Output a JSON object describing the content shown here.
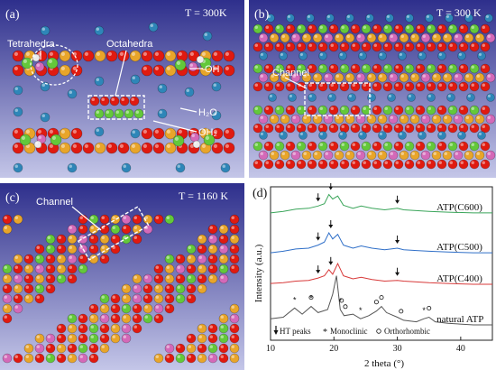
{
  "panels": {
    "a": {
      "letter": "(a)",
      "temp": "T = 300K",
      "tetrahedra": "Tetrahedra",
      "octahedra": "Octahedra",
      "oh": "OH",
      "h2o": "H₂O",
      "oh2": "OH₂"
    },
    "b": {
      "letter": "(b)",
      "temp": "T = 300 K",
      "channel": "Channel"
    },
    "c": {
      "letter": "(c)",
      "temp": "T = 1160 K",
      "channel": "Channel"
    },
    "d": {
      "letter": "(d)"
    }
  },
  "colors": {
    "bg_top": "#2e2f8c",
    "bg_bottom": "#c4c6e8",
    "oxygen": "#e01a10",
    "silicon": "#e8a52a",
    "magnesium": "#63c83a",
    "aluminium": "#d469b8",
    "hydrogen": "#ececec",
    "water": "#2e86b8",
    "annotation": "#ffffff"
  },
  "chart_data": {
    "type": "line",
    "xlabel": "2 theta (°)",
    "ylabel": "Intensity (a.u.)",
    "xlim": [
      10,
      45
    ],
    "xticks": [
      10,
      20,
      30,
      40
    ],
    "grid": false,
    "series": [
      {
        "name": "ATP(C600)",
        "color": "#3aa55a",
        "label": "ATP(C600)",
        "x": [
          10,
          12,
          14,
          16,
          17.5,
          18.5,
          19.2,
          19.8,
          20.6,
          21.5,
          23,
          24.3,
          26,
          28,
          30,
          31,
          33,
          35,
          38,
          42,
          45
        ],
        "y": [
          0.83,
          0.84,
          0.855,
          0.86,
          0.875,
          0.89,
          0.95,
          0.92,
          0.94,
          0.88,
          0.86,
          0.875,
          0.86,
          0.85,
          0.86,
          0.85,
          0.845,
          0.84,
          0.835,
          0.83,
          0.83
        ]
      },
      {
        "name": "ATP(C500)",
        "color": "#2f6fc8",
        "label": "ATP(C500)",
        "x": [
          10,
          12,
          14,
          16,
          17.5,
          18.5,
          19.2,
          19.8,
          20.6,
          21.5,
          23,
          24.3,
          26,
          28,
          30,
          31,
          33,
          35,
          38,
          42,
          45
        ],
        "y": [
          0.57,
          0.58,
          0.595,
          0.6,
          0.62,
          0.64,
          0.7,
          0.66,
          0.69,
          0.62,
          0.6,
          0.615,
          0.6,
          0.59,
          0.6,
          0.59,
          0.585,
          0.58,
          0.575,
          0.57,
          0.57
        ]
      },
      {
        "name": "ATP(C400)",
        "color": "#d83a3a",
        "label": "ATP(C400)",
        "x": [
          10,
          12,
          14,
          16,
          17.5,
          18.5,
          19.2,
          19.8,
          20.6,
          21.5,
          23,
          24.3,
          26,
          28,
          30,
          31,
          33,
          35,
          38,
          42,
          45
        ],
        "y": [
          0.37,
          0.375,
          0.385,
          0.39,
          0.405,
          0.42,
          0.46,
          0.43,
          0.5,
          0.42,
          0.4,
          0.41,
          0.395,
          0.385,
          0.39,
          0.385,
          0.38,
          0.375,
          0.37,
          0.365,
          0.365
        ]
      },
      {
        "name": "natural ATP",
        "color": "#555555",
        "label": "natural ATP",
        "x": [
          10,
          12,
          13.8,
          15,
          16.4,
          17.5,
          19,
          19.8,
          20.4,
          21,
          21.6,
          23,
          24.2,
          25.5,
          26.7,
          27.5,
          28.3,
          30,
          31,
          33,
          34.2,
          35,
          36,
          38,
          42,
          45
        ],
        "y": [
          0.14,
          0.15,
          0.21,
          0.17,
          0.22,
          0.18,
          0.2,
          0.3,
          0.42,
          0.2,
          0.16,
          0.17,
          0.14,
          0.16,
          0.19,
          0.22,
          0.18,
          0.15,
          0.13,
          0.12,
          0.14,
          0.15,
          0.12,
          0.11,
          0.1,
          0.1
        ]
      }
    ],
    "arrows_x": [
      17.5,
      19.5,
      30
    ],
    "legend_items": [
      "HT peaks",
      "Monoclinic",
      "Orthorhombic"
    ]
  }
}
